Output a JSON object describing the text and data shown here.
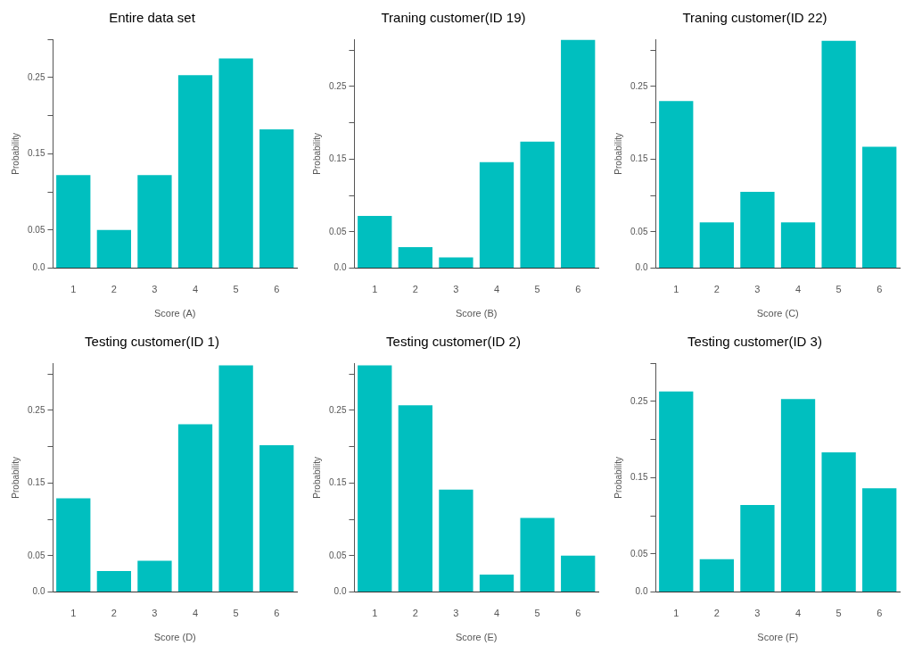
{
  "chart_data": [
    {
      "type": "bar",
      "title": "Entire data set",
      "xlabel": "Score (A)",
      "ylabel": "Probability",
      "categories": [
        "1",
        "2",
        "3",
        "4",
        "5",
        "6"
      ],
      "values": [
        0.122,
        0.05,
        0.122,
        0.253,
        0.275,
        0.182
      ],
      "color": "#00bfbf",
      "ylim": [
        0,
        0.3
      ],
      "yticks": [
        {
          "value": 0,
          "label": "0.0"
        },
        0.05,
        {
          "value": 0.1,
          "label": null
        },
        0.15,
        {
          "value": 0.2,
          "label": null
        },
        0.25,
        {
          "value": 0.3,
          "label": null
        }
      ]
    },
    {
      "type": "bar",
      "title": "Traning customer(ID 19)",
      "xlabel": "Score (B)",
      "ylabel": "Probability",
      "categories": [
        "1",
        "2",
        "3",
        "4",
        "5",
        "6"
      ],
      "values": [
        0.072,
        0.029,
        0.015,
        0.146,
        0.174,
        0.314
      ],
      "color": "#00bfbf",
      "ylim": [
        0,
        0.315
      ],
      "yticks": [
        {
          "value": 0,
          "label": "0.0"
        },
        0.05,
        {
          "value": 0.1,
          "label": null
        },
        0.15,
        {
          "value": 0.2,
          "label": null
        },
        0.25,
        {
          "value": 0.3,
          "label": null
        }
      ]
    },
    {
      "type": "bar",
      "title": "Traning customer(ID 22)",
      "xlabel": "Score (C)",
      "ylabel": "Probability",
      "categories": [
        "1",
        "2",
        "3",
        "4",
        "5",
        "6"
      ],
      "values": [
        0.23,
        0.063,
        0.105,
        0.063,
        0.313,
        0.167
      ],
      "color": "#00bfbf",
      "ylim": [
        0,
        0.315
      ],
      "yticks": [
        {
          "value": 0,
          "label": "0.0"
        },
        0.05,
        {
          "value": 0.1,
          "label": null
        },
        0.15,
        {
          "value": 0.2,
          "label": null
        },
        0.25,
        {
          "value": 0.3,
          "label": null
        }
      ]
    },
    {
      "type": "bar",
      "title": "Testing customer(ID 1)",
      "xlabel": "Score (D)",
      "ylabel": "Probability",
      "categories": [
        "1",
        "2",
        "3",
        "4",
        "5",
        "6"
      ],
      "values": [
        0.129,
        0.029,
        0.043,
        0.231,
        0.312,
        0.202
      ],
      "color": "#00bfbf",
      "ylim": [
        0,
        0.315
      ],
      "yticks": [
        {
          "value": 0,
          "label": "0.0"
        },
        0.05,
        {
          "value": 0.1,
          "label": null
        },
        0.15,
        {
          "value": 0.2,
          "label": null
        },
        0.25,
        {
          "value": 0.3,
          "label": null
        }
      ]
    },
    {
      "type": "bar",
      "title": "Testing customer(ID 2)",
      "xlabel": "Score (E)",
      "ylabel": "Probability",
      "categories": [
        "1",
        "2",
        "3",
        "4",
        "5",
        "6"
      ],
      "values": [
        0.312,
        0.257,
        0.141,
        0.024,
        0.102,
        0.05
      ],
      "color": "#00bfbf",
      "ylim": [
        0,
        0.315
      ],
      "yticks": [
        {
          "value": 0,
          "label": "0.0"
        },
        0.05,
        {
          "value": 0.1,
          "label": null
        },
        0.15,
        {
          "value": 0.2,
          "label": null
        },
        0.25,
        {
          "value": 0.3,
          "label": null
        }
      ]
    },
    {
      "type": "bar",
      "title": "Testing customer(ID 3)",
      "xlabel": "Score (F)",
      "ylabel": "Probability",
      "categories": [
        "1",
        "2",
        "3",
        "4",
        "5",
        "6"
      ],
      "values": [
        0.263,
        0.043,
        0.114,
        0.253,
        0.183,
        0.136
      ],
      "color": "#00bfbf",
      "ylim": [
        0,
        0.3
      ],
      "yticks": [
        {
          "value": 0,
          "label": "0.0"
        },
        0.05,
        {
          "value": 0.1,
          "label": null
        },
        0.15,
        {
          "value": 0.2,
          "label": null
        },
        0.25,
        {
          "value": 0.3,
          "label": null
        }
      ]
    }
  ]
}
